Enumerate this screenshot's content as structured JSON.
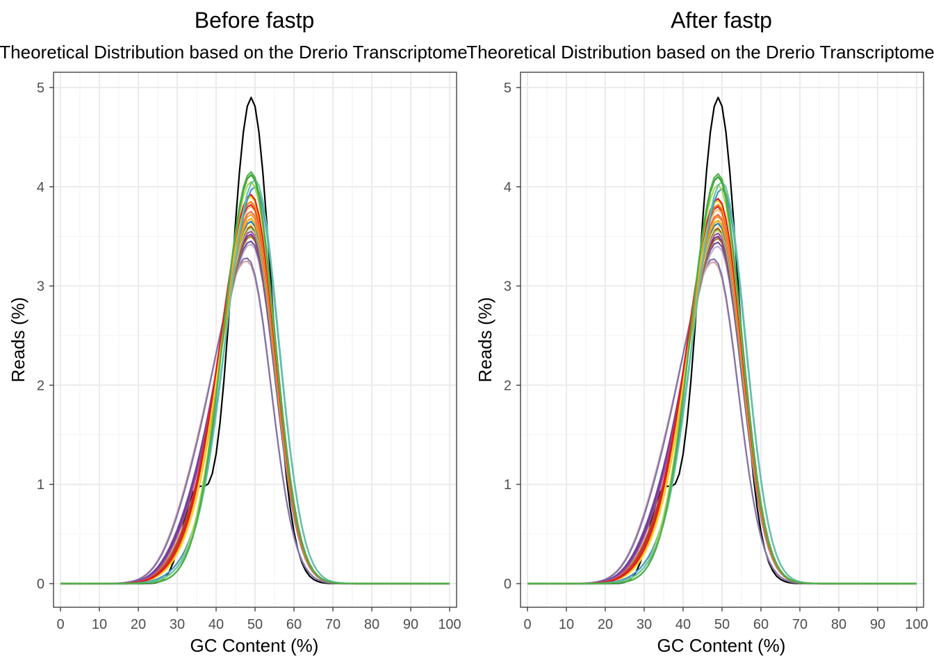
{
  "chart_data": [
    {
      "type": "line",
      "title": "Before fastp",
      "subtitle": "Theoretical Distribution based on the Drerio Transcriptome",
      "xlabel": "GC Content (%)",
      "ylabel": "Reads (%)",
      "xlim": [
        0,
        100
      ],
      "ylim": [
        0,
        5
      ],
      "xticks": [
        "0",
        "10",
        "20",
        "30",
        "40",
        "50",
        "60",
        "70",
        "80",
        "90",
        "100"
      ],
      "yticks": [
        "0",
        "1",
        "2",
        "3",
        "4",
        "5"
      ],
      "grid": true,
      "legend": "none",
      "theoretical": {
        "color": "#000000",
        "peak_x": 49,
        "peak_y": 4.9
      },
      "samples": [
        {
          "color": "#4DAF4A",
          "peak_x": 49,
          "peak_y": 4.15,
          "skew": 0.0,
          "shoulder": 0.0
        },
        {
          "color": "#33A02C",
          "peak_x": 49,
          "peak_y": 4.12,
          "skew": 0.0,
          "shoulder": 0.0
        },
        {
          "color": "#66C2A5",
          "peak_x": 50,
          "peak_y": 4.07,
          "skew": 0.2,
          "shoulder": 0.1
        },
        {
          "color": "#A6D854",
          "peak_x": 49,
          "peak_y": 4.05,
          "skew": 0.1,
          "shoulder": 0.05
        },
        {
          "color": "#4393C3",
          "peak_x": 50,
          "peak_y": 4.0,
          "skew": 0.3,
          "shoulder": 0.15
        },
        {
          "color": "#E41A1C",
          "peak_x": 49,
          "peak_y": 3.92,
          "skew": 0.5,
          "shoulder": 0.25
        },
        {
          "color": "#FFD92F",
          "peak_x": 49,
          "peak_y": 3.9,
          "skew": 0.4,
          "shoulder": 0.2
        },
        {
          "color": "#FF7F00",
          "peak_x": 49,
          "peak_y": 3.85,
          "skew": 0.45,
          "shoulder": 0.22
        },
        {
          "color": "#D62728",
          "peak_x": 49,
          "peak_y": 3.82,
          "skew": 0.6,
          "shoulder": 0.3
        },
        {
          "color": "#FDBF6F",
          "peak_x": 49,
          "peak_y": 3.8,
          "skew": 0.5,
          "shoulder": 0.2
        },
        {
          "color": "#F46D43",
          "peak_x": 49,
          "peak_y": 3.75,
          "skew": 0.55,
          "shoulder": 0.25
        },
        {
          "color": "#FB9A29",
          "peak_x": 49,
          "peak_y": 3.72,
          "skew": 0.5,
          "shoulder": 0.25
        },
        {
          "color": "#E6AB02",
          "peak_x": 49,
          "peak_y": 3.68,
          "skew": 0.45,
          "shoulder": 0.2
        },
        {
          "color": "#1F78B4",
          "peak_x": 49,
          "peak_y": 3.65,
          "skew": 0.6,
          "shoulder": 0.3
        },
        {
          "color": "#FEE08B",
          "peak_x": 49,
          "peak_y": 3.62,
          "skew": 0.55,
          "shoulder": 0.35
        },
        {
          "color": "#8C510A",
          "peak_x": 49,
          "peak_y": 3.6,
          "skew": 0.6,
          "shoulder": 0.3
        },
        {
          "color": "#B2DF8A",
          "peak_x": 49,
          "peak_y": 3.58,
          "skew": 0.6,
          "shoulder": 0.3
        },
        {
          "color": "#984EA3",
          "peak_x": 49,
          "peak_y": 3.55,
          "skew": 0.8,
          "shoulder": 0.4
        },
        {
          "color": "#7B3294",
          "peak_x": 49,
          "peak_y": 3.52,
          "skew": 0.85,
          "shoulder": 0.45
        },
        {
          "color": "#A6761D",
          "peak_x": 49,
          "peak_y": 3.5,
          "skew": 0.7,
          "shoulder": 0.35
        },
        {
          "color": "#6A51A3",
          "peak_x": 49,
          "peak_y": 3.45,
          "skew": 0.9,
          "shoulder": 0.5
        },
        {
          "color": "#BEAED4",
          "peak_x": 49,
          "peak_y": 3.42,
          "skew": 0.9,
          "shoulder": 0.45
        },
        {
          "color": "#8073AC",
          "peak_x": 48,
          "peak_y": 3.28,
          "skew": 1.0,
          "shoulder": 0.6
        },
        {
          "color": "#D4A0A0",
          "peak_x": 48,
          "peak_y": 3.25,
          "skew": 1.1,
          "shoulder": 0.6
        }
      ]
    },
    {
      "type": "line",
      "title": "After fastp",
      "subtitle": "Theoretical Distribution based on the Drerio Transcriptome",
      "xlabel": "GC Content (%)",
      "ylabel": "Reads (%)",
      "xlim": [
        0,
        100
      ],
      "ylim": [
        0,
        5
      ],
      "xticks": [
        "0",
        "10",
        "20",
        "30",
        "40",
        "50",
        "60",
        "70",
        "80",
        "90",
        "100"
      ],
      "yticks": [
        "0",
        "1",
        "2",
        "3",
        "4",
        "5"
      ],
      "grid": true,
      "legend": "none",
      "theoretical": {
        "color": "#000000",
        "peak_x": 49,
        "peak_y": 4.9
      },
      "samples": [
        {
          "color": "#4DAF4A",
          "peak_x": 49,
          "peak_y": 4.13,
          "skew": 0.0,
          "shoulder": 0.0
        },
        {
          "color": "#33A02C",
          "peak_x": 49,
          "peak_y": 4.1,
          "skew": 0.0,
          "shoulder": 0.0
        },
        {
          "color": "#66C2A5",
          "peak_x": 50,
          "peak_y": 4.05,
          "skew": 0.2,
          "shoulder": 0.1
        },
        {
          "color": "#A6D854",
          "peak_x": 49,
          "peak_y": 4.02,
          "skew": 0.1,
          "shoulder": 0.05
        },
        {
          "color": "#4393C3",
          "peak_x": 50,
          "peak_y": 3.98,
          "skew": 0.3,
          "shoulder": 0.15
        },
        {
          "color": "#E41A1C",
          "peak_x": 49,
          "peak_y": 3.88,
          "skew": 0.5,
          "shoulder": 0.25
        },
        {
          "color": "#FFD92F",
          "peak_x": 49,
          "peak_y": 3.86,
          "skew": 0.4,
          "shoulder": 0.2
        },
        {
          "color": "#FF7F00",
          "peak_x": 49,
          "peak_y": 3.82,
          "skew": 0.45,
          "shoulder": 0.22
        },
        {
          "color": "#D62728",
          "peak_x": 49,
          "peak_y": 3.8,
          "skew": 0.6,
          "shoulder": 0.3
        },
        {
          "color": "#FDBF6F",
          "peak_x": 49,
          "peak_y": 3.77,
          "skew": 0.5,
          "shoulder": 0.2
        },
        {
          "color": "#F46D43",
          "peak_x": 49,
          "peak_y": 3.72,
          "skew": 0.55,
          "shoulder": 0.25
        },
        {
          "color": "#FB9A29",
          "peak_x": 49,
          "peak_y": 3.7,
          "skew": 0.5,
          "shoulder": 0.25
        },
        {
          "color": "#E6AB02",
          "peak_x": 49,
          "peak_y": 3.66,
          "skew": 0.45,
          "shoulder": 0.2
        },
        {
          "color": "#1F78B4",
          "peak_x": 49,
          "peak_y": 3.63,
          "skew": 0.6,
          "shoulder": 0.3
        },
        {
          "color": "#FEE08B",
          "peak_x": 49,
          "peak_y": 3.6,
          "skew": 0.55,
          "shoulder": 0.35
        },
        {
          "color": "#8C510A",
          "peak_x": 49,
          "peak_y": 3.58,
          "skew": 0.6,
          "shoulder": 0.3
        },
        {
          "color": "#B2DF8A",
          "peak_x": 49,
          "peak_y": 3.56,
          "skew": 0.6,
          "shoulder": 0.3
        },
        {
          "color": "#984EA3",
          "peak_x": 49,
          "peak_y": 3.53,
          "skew": 0.8,
          "shoulder": 0.4
        },
        {
          "color": "#7B3294",
          "peak_x": 49,
          "peak_y": 3.5,
          "skew": 0.85,
          "shoulder": 0.45
        },
        {
          "color": "#A6761D",
          "peak_x": 49,
          "peak_y": 3.48,
          "skew": 0.7,
          "shoulder": 0.35
        },
        {
          "color": "#6A51A3",
          "peak_x": 49,
          "peak_y": 3.44,
          "skew": 0.9,
          "shoulder": 0.5
        },
        {
          "color": "#BEAED4",
          "peak_x": 49,
          "peak_y": 3.4,
          "skew": 0.9,
          "shoulder": 0.45
        },
        {
          "color": "#8073AC",
          "peak_x": 48,
          "peak_y": 3.27,
          "skew": 1.0,
          "shoulder": 0.6
        },
        {
          "color": "#D4A0A0",
          "peak_x": 48,
          "peak_y": 3.24,
          "skew": 1.1,
          "shoulder": 0.6
        }
      ]
    }
  ]
}
